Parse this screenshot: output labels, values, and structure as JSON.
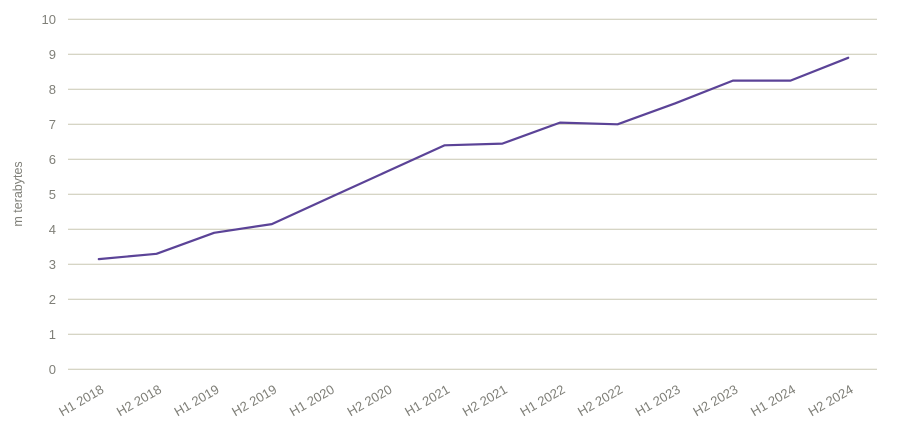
{
  "chart_data": {
    "type": "line",
    "title": "",
    "xlabel": "",
    "ylabel": "m terabytes",
    "categories": [
      "H1 2018",
      "H2 2018",
      "H1 2019",
      "H2 2019",
      "H1 2020",
      "H2 2020",
      "H1 2021",
      "H2 2021",
      "H1 2022",
      "H2 2022",
      "H1 2023",
      "H2 2023",
      "H1 2024",
      "H2 2024"
    ],
    "values": [
      3.15,
      3.3,
      3.9,
      4.15,
      4.9,
      5.65,
      6.4,
      6.45,
      7.05,
      7.0,
      7.6,
      8.25,
      8.25,
      8.9
    ],
    "ylim": [
      0,
      10
    ],
    "yticks": [
      0,
      1,
      2,
      3,
      4,
      5,
      6,
      7,
      8,
      9,
      10
    ],
    "grid": "horizontal-only",
    "legend": "none",
    "line_style": "solid, no markers",
    "colors": {
      "line": "#5b4397",
      "gridline": "#c9c7b2",
      "tick_label": "#7f7f78",
      "background": "#ffffff"
    }
  }
}
